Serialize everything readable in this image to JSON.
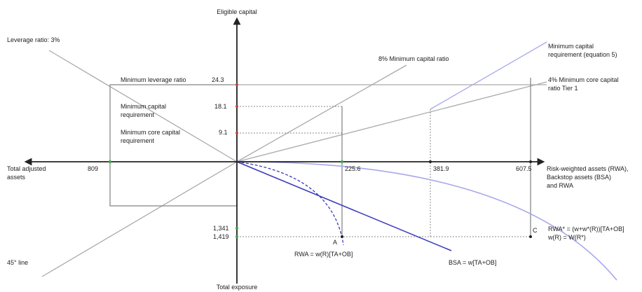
{
  "axes": {
    "top": "Eligible capital",
    "bottom": "Total exposure",
    "left": [
      "Total adjusted",
      "assets"
    ],
    "right": [
      "Risk-weighted assets (RWA),",
      "Backstop assets (BSA)",
      "and RWA"
    ]
  },
  "line_labels": {
    "leverage_ratio": "Leverage ratio: 3%",
    "forty_five": "45° line",
    "min_capital_ratio": "8% Minimum capital ratio",
    "min_capital_req_eq5": [
      "Minimum capital",
      "requirement (equation 5)"
    ],
    "min_core_ratio": [
      "4% Minimum core capital",
      "ratio Tier 1"
    ],
    "rwa_formula": "RWA = w(R)[TA+OB]",
    "bsa_formula": "BSA = w[TA+OB]",
    "rwa_star": [
      "RWA* = (w+w*(R))[TA+OB]",
      "w(R) = W(R*)"
    ]
  },
  "requirements": [
    {
      "label": [
        "Minimum leverage ratio"
      ],
      "value": "24.3"
    },
    {
      "label": [
        "Minimum capital",
        "requirement"
      ],
      "value": "18.1"
    },
    {
      "label": [
        "Minimum core capital",
        "requirement"
      ],
      "value": "9.1"
    }
  ],
  "x_values": {
    "left": "809",
    "right": [
      "225.6",
      "381.9",
      "607.5"
    ]
  },
  "y_values": {
    "lower": [
      "1,341",
      "1,419"
    ]
  },
  "points": {
    "a": "A",
    "c": "C"
  },
  "colors": {
    "axis": "#222222",
    "gray_line": "#aaaaaa",
    "box": "#888888",
    "dotted": "#888888",
    "blue_dark": "#3c3cbe",
    "blue_light": "#a8a8ea",
    "red_marker": "#d23a3a",
    "green_marker": "#3aa53a"
  }
}
